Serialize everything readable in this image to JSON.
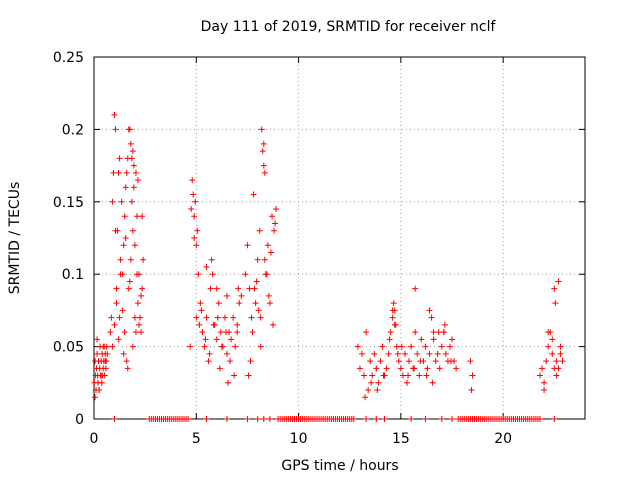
{
  "chart_data": {
    "type": "scatter",
    "title": "Day 111 of 2019, SRMTID for receiver nclf",
    "xlabel": "GPS time / hours",
    "ylabel": "SRMTID / TECUs",
    "xlim": [
      0,
      24
    ],
    "ylim": [
      0,
      0.25
    ],
    "xticks": [
      0,
      5,
      10,
      15,
      20
    ],
    "xtick_labels": [
      "0",
      "5",
      "10",
      "15",
      "20"
    ],
    "yticks": [
      0,
      0.05,
      0.1,
      0.15,
      0.2,
      0.25
    ],
    "ytick_labels": [
      "0",
      "0.05",
      "0.1",
      "0.15",
      "0.2",
      "0.25"
    ],
    "grid": true,
    "marker": "plus",
    "color": "#ff0000",
    "series": [
      {
        "x": [
          0.02,
          0.05,
          0.08,
          0.1,
          0.12,
          0.15,
          0.18,
          0.2,
          0.22,
          0.25,
          0.28,
          0.3,
          0.32,
          0.35,
          0.38,
          0.4,
          0.42,
          0.45,
          0.48,
          0.5,
          0.52,
          0.55,
          0.58,
          0.6,
          0.62,
          0.65,
          0.05,
          0.15,
          0.25,
          0.35,
          0.45,
          0.55,
          0.8,
          0.85,
          0.9,
          0.95,
          1.0,
          1.05,
          1.1,
          1.15,
          1.2,
          1.25,
          1.3,
          1.35,
          1.4,
          1.45,
          1.5,
          1.55,
          1.6,
          1.65,
          1.7,
          1.75,
          1.8,
          1.85,
          1.9,
          1.95,
          2.0,
          2.05,
          2.1,
          2.15,
          2.2,
          2.25,
          2.3,
          2.35,
          2.4,
          0.9,
          1.0,
          1.1,
          1.2,
          1.3,
          1.4,
          1.5,
          1.6,
          1.7,
          1.8,
          1.9,
          2.0,
          2.1,
          2.2,
          2.3,
          1.85,
          1.9,
          1.95,
          1.05,
          1.55,
          2.15,
          1.25,
          1.75,
          2.35,
          1.45,
          1.65,
          2.05,
          4.7,
          4.75,
          4.8,
          4.85,
          4.9,
          4.95,
          5.0,
          5.05,
          5.1,
          5.15,
          5.2,
          5.3,
          5.4,
          5.5,
          5.6,
          5.7,
          5.8,
          5.9,
          6.0,
          6.1,
          6.2,
          6.3,
          6.4,
          6.5,
          6.6,
          6.7,
          6.8,
          6.9,
          7.0,
          7.1,
          7.2,
          5.25,
          5.45,
          5.65,
          5.85,
          6.05,
          6.25,
          6.45,
          6.65,
          6.85,
          7.05,
          4.9,
          5.0,
          5.5,
          6.0,
          6.5,
          7.0,
          5.75,
          6.15,
          6.55,
          7.4,
          7.5,
          7.6,
          7.7,
          7.8,
          7.9,
          8.0,
          8.1,
          8.2,
          8.3,
          8.4,
          8.5,
          8.6,
          8.7,
          8.8,
          8.9,
          7.55,
          7.75,
          7.95,
          8.15,
          8.35,
          8.55,
          8.75,
          8.25,
          8.3,
          8.35,
          8.15,
          8.45,
          7.65,
          7.85,
          8.05,
          8.65,
          8.85,
          12.9,
          13.0,
          13.1,
          13.2,
          13.3,
          13.4,
          13.5,
          13.6,
          13.7,
          13.8,
          13.9,
          14.0,
          14.1,
          14.2,
          14.3,
          14.4,
          14.5,
          14.6,
          14.7,
          14.8,
          14.9,
          15.0,
          15.1,
          15.2,
          15.3,
          15.4,
          15.5,
          15.6,
          15.7,
          15.8,
          15.9,
          16.0,
          16.1,
          16.2,
          16.3,
          16.4,
          16.5,
          16.6,
          16.7,
          16.8,
          16.9,
          17.0,
          17.1,
          17.2,
          17.3,
          17.4,
          17.5,
          17.6,
          17.7,
          13.25,
          13.55,
          13.85,
          14.15,
          14.45,
          14.65,
          14.75,
          14.85,
          15.05,
          15.35,
          15.65,
          15.95,
          16.25,
          16.55,
          16.85,
          17.15,
          17.45,
          14.6,
          14.7,
          15.7,
          16.4,
          16.6,
          17.1,
          18.4,
          18.5,
          18.45,
          21.8,
          21.9,
          22.0,
          22.1,
          22.2,
          22.3,
          22.4,
          22.5,
          22.6,
          22.7,
          22.8,
          22.9,
          22.0,
          22.2,
          22.4,
          22.6,
          22.8,
          22.5,
          22.55,
          22.7
        ],
        "y": [
          0.025,
          0.04,
          0.03,
          0.02,
          0.035,
          0.045,
          0.03,
          0.025,
          0.04,
          0.02,
          0.035,
          0.05,
          0.03,
          0.04,
          0.025,
          0.045,
          0.03,
          0.035,
          0.04,
          0.05,
          0.03,
          0.045,
          0.035,
          0.04,
          0.05,
          0.045,
          0.015,
          0.055,
          0.02,
          0.03,
          0.05,
          0.04,
          0.06,
          0.07,
          0.15,
          0.17,
          0.21,
          0.2,
          0.09,
          0.13,
          0.17,
          0.18,
          0.11,
          0.15,
          0.1,
          0.12,
          0.14,
          0.16,
          0.17,
          0.18,
          0.2,
          0.2,
          0.19,
          0.15,
          0.13,
          0.16,
          0.12,
          0.17,
          0.14,
          0.08,
          0.1,
          0.07,
          0.06,
          0.09,
          0.11,
          0.05,
          0.065,
          0.08,
          0.055,
          0.1,
          0.075,
          0.06,
          0.04,
          0.09,
          0.11,
          0.05,
          0.07,
          0.1,
          0.065,
          0.085,
          0.18,
          0.185,
          0.175,
          0.13,
          0.125,
          0.165,
          0.07,
          0.095,
          0.14,
          0.045,
          0.035,
          0.06,
          0.05,
          0.145,
          0.165,
          0.155,
          0.14,
          0.15,
          0.12,
          0.13,
          0.1,
          0.065,
          0.08,
          0.06,
          0.05,
          0.07,
          0.04,
          0.09,
          0.1,
          0.065,
          0.055,
          0.08,
          0.06,
          0.05,
          0.07,
          0.045,
          0.06,
          0.055,
          0.07,
          0.05,
          0.065,
          0.08,
          0.085,
          0.075,
          0.055,
          0.045,
          0.065,
          0.07,
          0.05,
          0.06,
          0.04,
          0.03,
          0.09,
          0.125,
          0.07,
          0.105,
          0.09,
          0.085,
          0.06,
          0.11,
          0.035,
          0.025,
          0.1,
          0.12,
          0.09,
          0.07,
          0.155,
          0.08,
          0.11,
          0.13,
          0.2,
          0.175,
          0.1,
          0.12,
          0.08,
          0.14,
          0.13,
          0.145,
          0.03,
          0.06,
          0.095,
          0.07,
          0.11,
          0.085,
          0.065,
          0.185,
          0.19,
          0.17,
          0.05,
          0.1,
          0.04,
          0.09,
          0.075,
          0.115,
          0.135,
          0.05,
          0.035,
          0.045,
          0.03,
          0.06,
          0.02,
          0.04,
          0.03,
          0.045,
          0.035,
          0.025,
          0.04,
          0.05,
          0.03,
          0.035,
          0.045,
          0.06,
          0.07,
          0.075,
          0.05,
          0.04,
          0.035,
          0.03,
          0.045,
          0.025,
          0.04,
          0.05,
          0.035,
          0.06,
          0.045,
          0.03,
          0.055,
          0.04,
          0.05,
          0.035,
          0.045,
          0.07,
          0.055,
          0.04,
          0.045,
          0.035,
          0.05,
          0.06,
          0.045,
          0.04,
          0.05,
          0.055,
          0.04,
          0.035,
          0.015,
          0.025,
          0.02,
          0.03,
          0.055,
          0.08,
          0.065,
          0.045,
          0.05,
          0.03,
          0.035,
          0.04,
          0.03,
          0.025,
          0.06,
          0.065,
          0.04,
          0.075,
          0.065,
          0.09,
          0.075,
          0.06,
          0.06,
          0.04,
          0.03,
          0.02,
          0.03,
          0.035,
          0.025,
          0.04,
          0.05,
          0.06,
          0.045,
          0.035,
          0.04,
          0.095,
          0.05,
          0.04,
          0.02,
          0.06,
          0.055,
          0.03,
          0.045,
          0.09,
          0.08,
          0.035
        ]
      },
      {
        "x": [
          1.0,
          2.7,
          2.8,
          2.9,
          3.0,
          3.1,
          3.2,
          3.3,
          3.4,
          3.5,
          3.6,
          3.7,
          3.8,
          3.9,
          4.0,
          4.1,
          4.2,
          4.3,
          4.4,
          4.5,
          4.6,
          5.5,
          6.5,
          7.5,
          8.0,
          8.3,
          8.6,
          9.0,
          9.1,
          9.2,
          9.3,
          9.4,
          9.5,
          9.6,
          9.7,
          9.8,
          9.9,
          10.0,
          10.1,
          10.2,
          10.3,
          10.4,
          10.5,
          10.6,
          10.7,
          10.8,
          10.9,
          11.0,
          11.1,
          11.2,
          11.3,
          11.4,
          11.5,
          11.6,
          11.7,
          11.8,
          11.9,
          12.0,
          12.1,
          12.2,
          12.3,
          12.4,
          12.5,
          12.6,
          12.7,
          13.3,
          13.8,
          14.2,
          15.5,
          16.2,
          17.0,
          17.5,
          17.8,
          17.9,
          18.0,
          18.1,
          18.2,
          18.3,
          18.4,
          18.5,
          18.6,
          18.7,
          18.8,
          18.9,
          19.0,
          19.1,
          19.2,
          19.3,
          19.4,
          19.5,
          19.6,
          19.7,
          19.8,
          19.9,
          20.0,
          20.1,
          20.2,
          20.3,
          20.4,
          20.5,
          20.6,
          20.7,
          20.8,
          20.9,
          21.0,
          21.1,
          21.2,
          21.3,
          21.4,
          21.5,
          21.6,
          21.7,
          21.8,
          22.5
        ],
        "y": [
          0,
          0,
          0,
          0,
          0,
          0,
          0,
          0,
          0,
          0,
          0,
          0,
          0,
          0,
          0,
          0,
          0,
          0,
          0,
          0,
          0,
          0,
          0,
          0,
          0,
          0,
          0,
          0,
          0,
          0,
          0,
          0,
          0,
          0,
          0,
          0,
          0,
          0,
          0,
          0,
          0,
          0,
          0,
          0,
          0,
          0,
          0,
          0,
          0,
          0,
          0,
          0,
          0,
          0,
          0,
          0,
          0,
          0,
          0,
          0,
          0,
          0,
          0,
          0,
          0,
          0,
          0,
          0,
          0,
          0,
          0,
          0,
          0,
          0,
          0,
          0,
          0,
          0,
          0,
          0,
          0,
          0,
          0,
          0,
          0,
          0,
          0,
          0,
          0,
          0,
          0,
          0,
          0,
          0,
          0,
          0,
          0,
          0,
          0,
          0,
          0,
          0,
          0,
          0,
          0,
          0,
          0,
          0,
          0,
          0,
          0,
          0,
          0,
          0
        ]
      }
    ]
  }
}
